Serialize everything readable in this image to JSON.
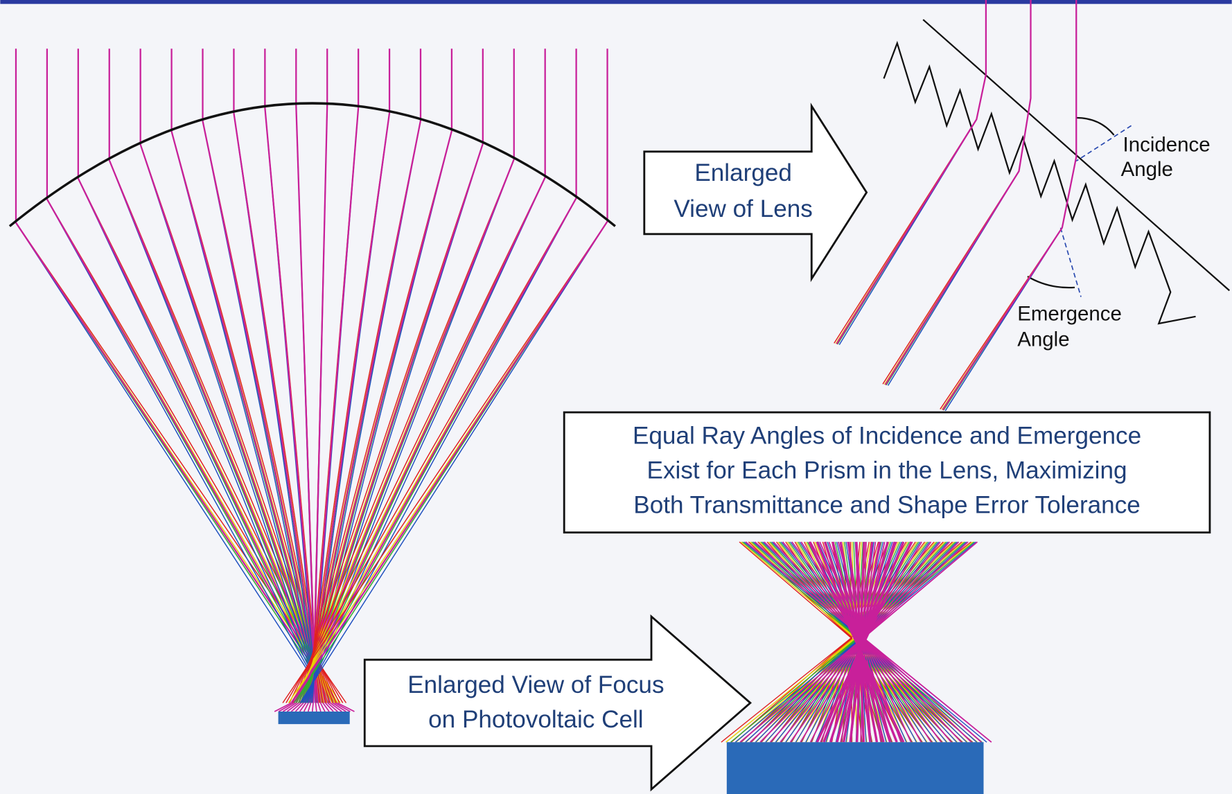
{
  "labels": {
    "lens_callout": [
      "Enlarged",
      "View of Lens"
    ],
    "incidence": [
      "Incidence",
      "Angle"
    ],
    "emergence": [
      "Emergence",
      "Angle"
    ],
    "caption": [
      "Equal Ray Angles of Incidence and Emergence",
      "Exist for Each Prism in the Lens, Maximizing",
      "Both Transmittance and Shape Error Tolerance"
    ],
    "focus_callout": [
      "Enlarged View of Focus",
      "on Photovoltaic Cell"
    ]
  }
}
